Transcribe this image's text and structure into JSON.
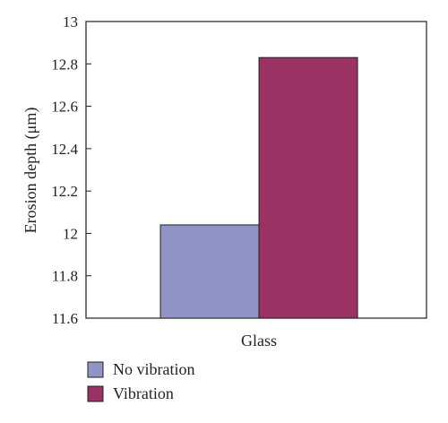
{
  "chart_data": {
    "type": "bar",
    "categories": [
      "Glass"
    ],
    "series": [
      {
        "name": "No vibration",
        "values": [
          12.04
        ],
        "color": "#9095c6"
      },
      {
        "name": "Vibration",
        "values": [
          12.83
        ],
        "color": "#9b3264"
      }
    ],
    "title": "",
    "xlabel": "",
    "ylabel": "Erosion depth (μm)",
    "ylim": [
      11.6,
      13.0
    ],
    "yticks": [
      11.6,
      11.8,
      12.0,
      12.2,
      12.4,
      12.6,
      12.8,
      13.0
    ],
    "ytick_labels": [
      "11.6",
      "11.8",
      "12",
      "12.2",
      "12.4",
      "12.6",
      "12.8",
      "13"
    ],
    "grid": false,
    "legend_position": "bottom-left"
  }
}
